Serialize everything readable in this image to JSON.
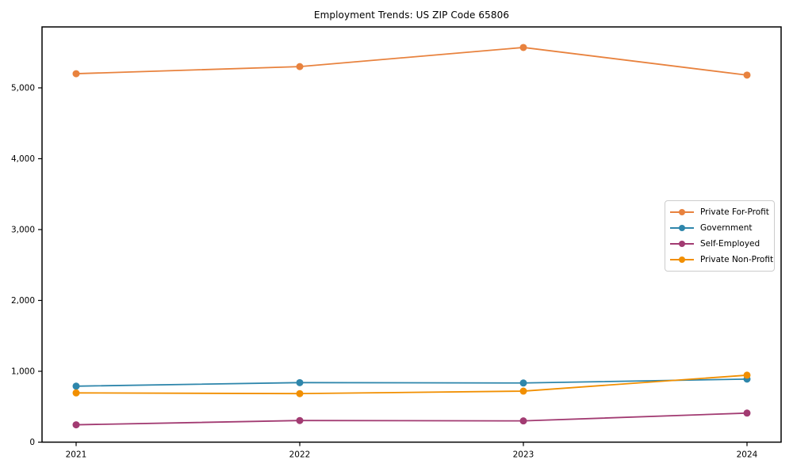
{
  "chart_data": {
    "type": "line",
    "title": "Employment Trends: US ZIP Code 65806",
    "categories": [
      "2021",
      "2022",
      "2023",
      "2024"
    ],
    "series": [
      {
        "name": "Private For-Profit",
        "color": "#E8823E",
        "values": [
          5200,
          5300,
          5570,
          5180
        ]
      },
      {
        "name": "Government",
        "color": "#2E86AB",
        "values": [
          790,
          840,
          835,
          890
        ]
      },
      {
        "name": "Self-Employed",
        "color": "#A23B72",
        "values": [
          245,
          305,
          300,
          410
        ]
      },
      {
        "name": "Private Non-Profit",
        "color": "#F18F01",
        "values": [
          695,
          685,
          720,
          945
        ]
      }
    ],
    "xlabel": "",
    "ylabel": "",
    "ylim": [
      0,
      5860
    ],
    "yticks": [
      0,
      1000,
      2000,
      3000,
      4000,
      5000
    ],
    "ytick_labels": [
      "0",
      "1,000",
      "2,000",
      "3,000",
      "4,000",
      "5,000"
    ],
    "grid": false,
    "legend_position": "center-right",
    "axis_color": "#000000",
    "background": "#ffffff"
  }
}
